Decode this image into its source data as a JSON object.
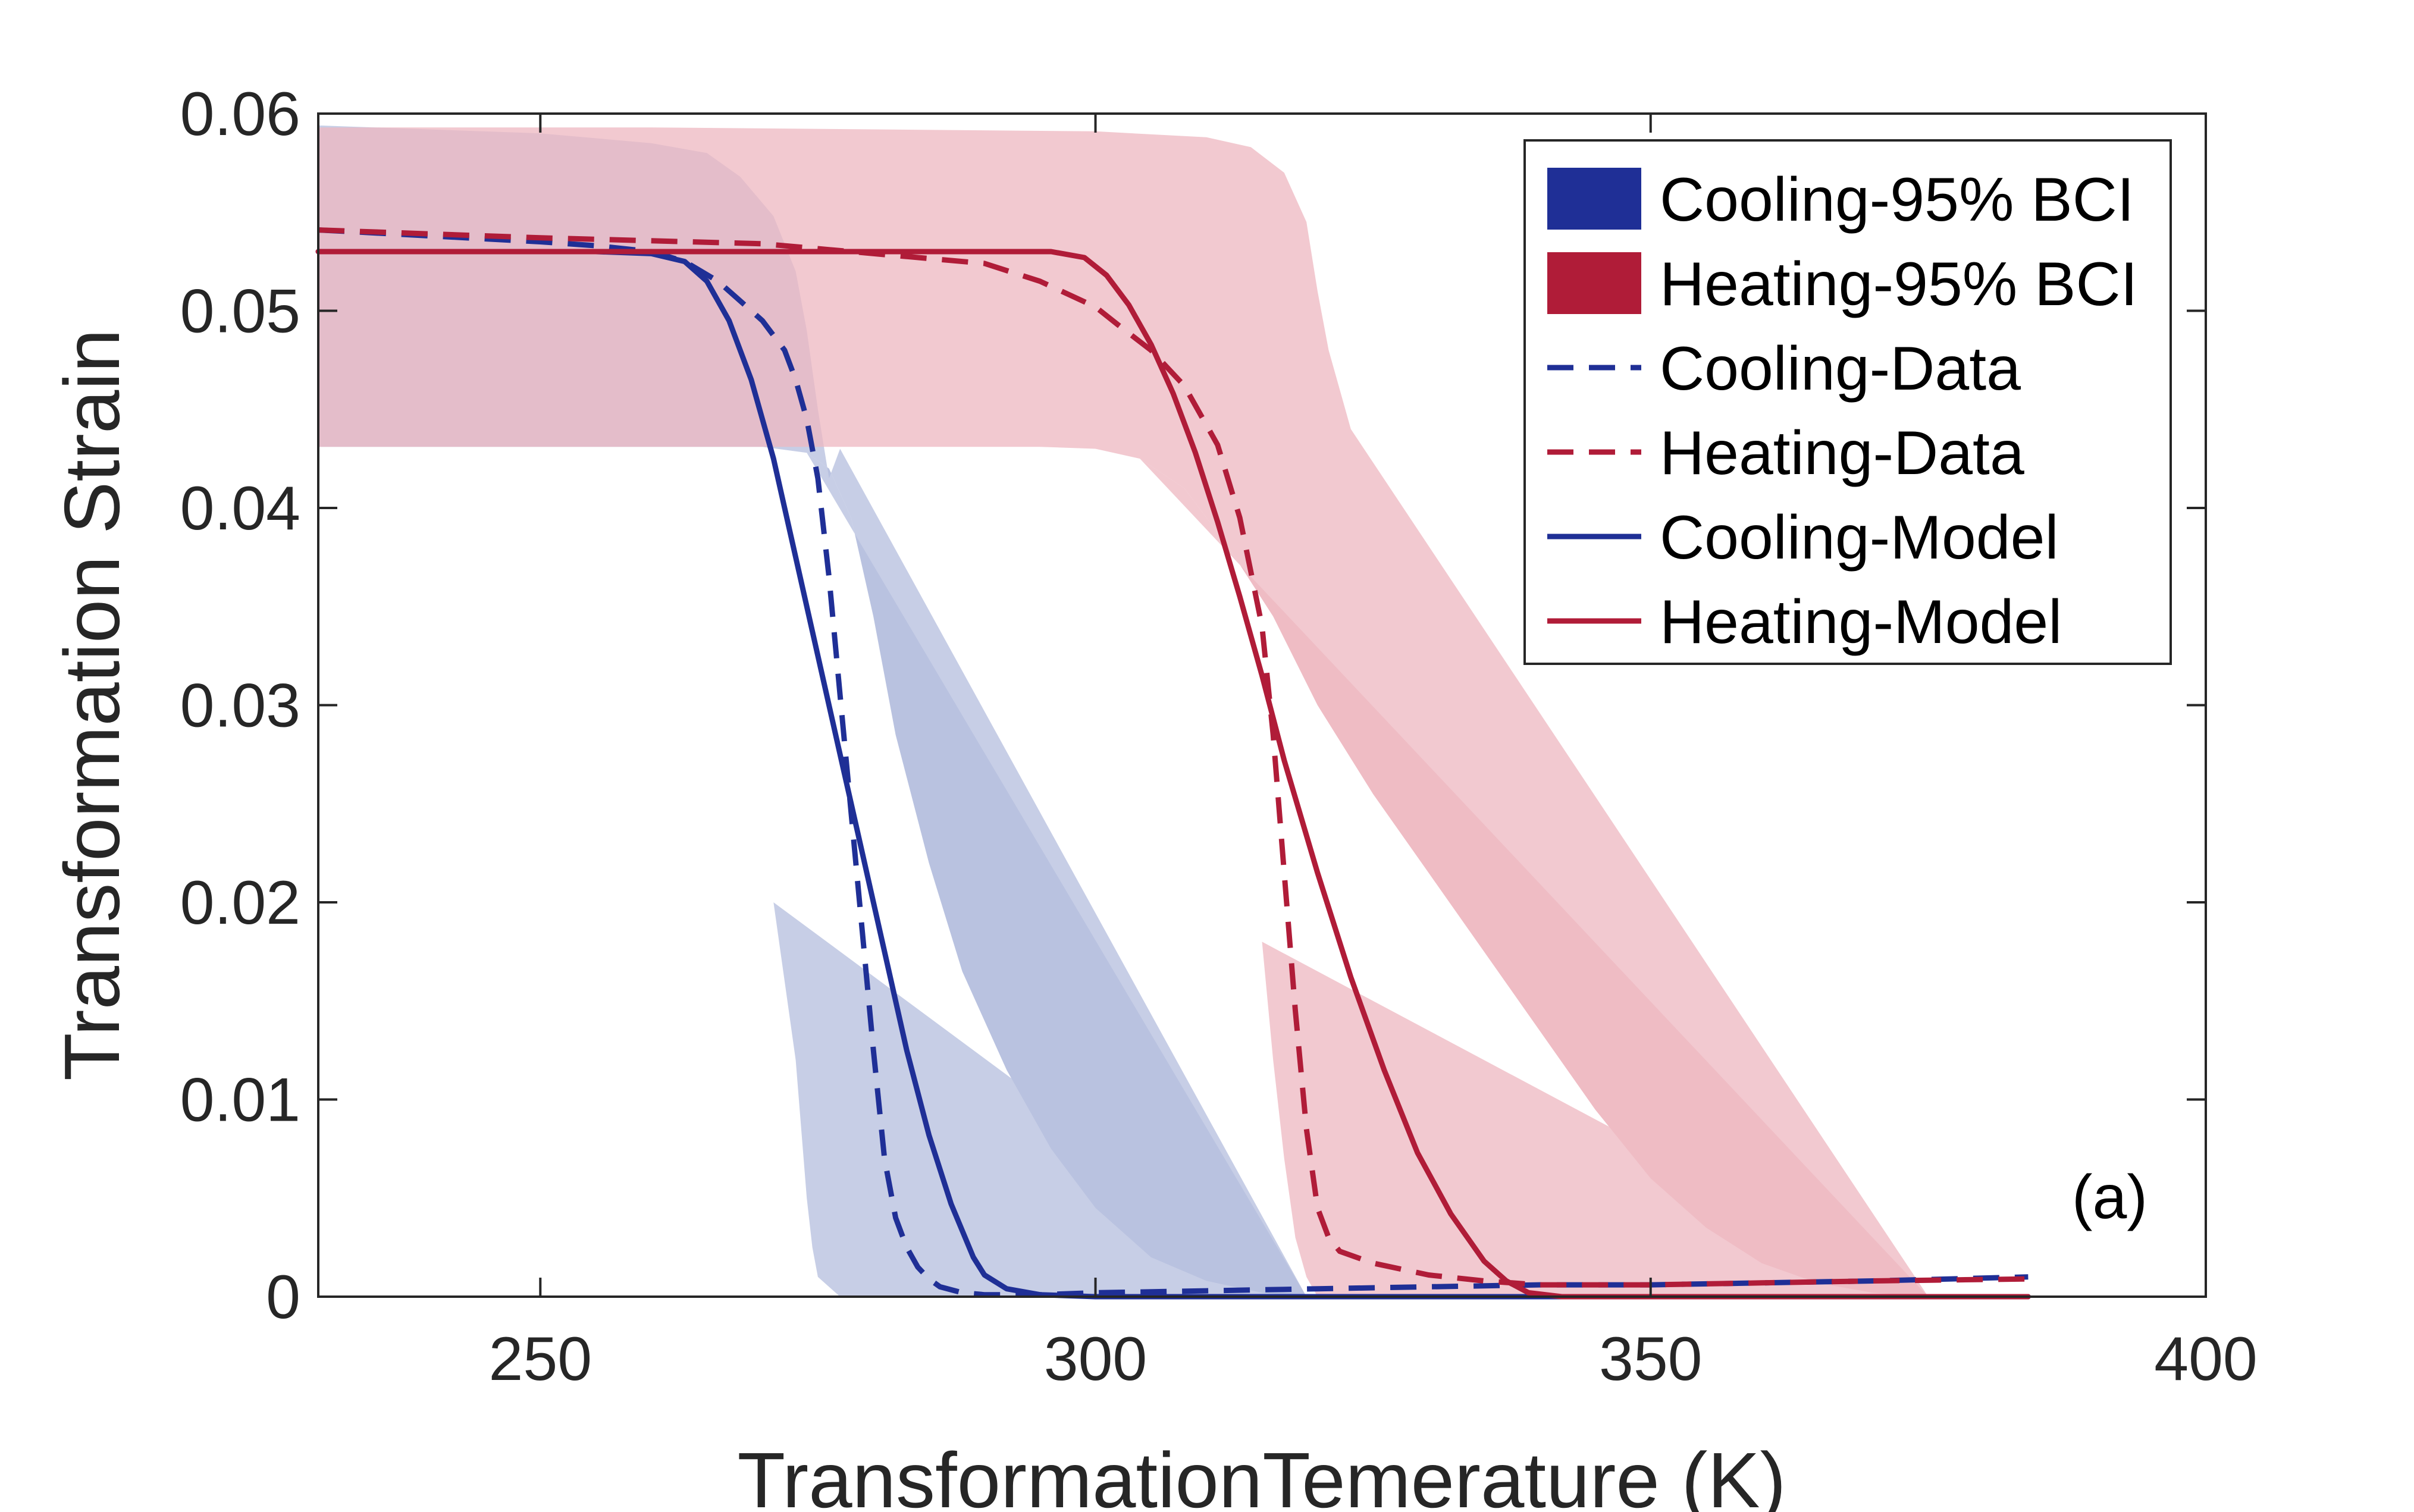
{
  "chart_data": {
    "type": "line",
    "title": "",
    "xlabel": "TransformationTemerature (K)",
    "ylabel": "Transformation Strain",
    "xlim": [
      230,
      400
    ],
    "ylim": [
      0,
      0.06
    ],
    "xticks": [
      250,
      300,
      350,
      400
    ],
    "yticks": [
      0,
      0.01,
      0.02,
      0.03,
      0.04,
      0.05,
      0.06
    ],
    "xtick_labels": [
      "250",
      "300",
      "350",
      "400"
    ],
    "ytick_labels": [
      "0",
      "0.01",
      "0.02",
      "0.03",
      "0.04",
      "0.05",
      "0.06"
    ],
    "grid": false,
    "legend_position": "top-right",
    "annotation": "(a)",
    "colors": {
      "cooling": "#1f2f96",
      "heating": "#b01c38",
      "cooling_band_fill": "#b4bedd",
      "heating_band_fill": "#edb7c0",
      "axis": "#262626"
    },
    "bands": [
      {
        "name": "Cooling-95% BCI",
        "color_key": "cooling",
        "fill_key": "cooling_band_fill",
        "upper_x": [
          230,
          240,
          250,
          260,
          265,
          268,
          271,
          273,
          274,
          275,
          276,
          277
        ],
        "upper_y": [
          0.0594,
          0.0592,
          0.059,
          0.0585,
          0.058,
          0.0568,
          0.0548,
          0.052,
          0.049,
          0.045,
          0.0415,
          0.043
        ],
        "lower_x": [
          230,
          250,
          270,
          274,
          276,
          278,
          280,
          282,
          285,
          288,
          292,
          296,
          300,
          305,
          310,
          315,
          319
        ],
        "lower_y": [
          0.0431,
          0.0431,
          0.0431,
          0.0428,
          0.042,
          0.0395,
          0.0345,
          0.0285,
          0.022,
          0.0165,
          0.0115,
          0.0075,
          0.0045,
          0.002,
          0.0008,
          0.0002,
          0.0
        ],
        "bottom_x": [
          277,
          275,
          274.5,
          274,
          273,
          271
        ],
        "bottom_y": [
          0.0,
          0.001,
          0.0025,
          0.005,
          0.012,
          0.02
        ]
      },
      {
        "name": "Heating-95% BCI",
        "color_key": "heating",
        "fill_key": "heating_band_fill",
        "upper_x": [
          230,
          260,
          280,
          300,
          310,
          314,
          317,
          319,
          320,
          321,
          322,
          323
        ],
        "upper_y": [
          0.0593,
          0.0593,
          0.0592,
          0.0591,
          0.0588,
          0.0583,
          0.057,
          0.0545,
          0.051,
          0.048,
          0.046,
          0.044
        ],
        "lower_x": [
          230,
          260,
          295,
          300,
          304,
          308,
          312,
          316,
          320,
          325,
          330,
          335,
          340,
          345,
          350,
          355,
          360,
          365,
          370,
          375
        ],
        "lower_y": [
          0.0431,
          0.0431,
          0.0431,
          0.043,
          0.0425,
          0.041,
          0.038,
          0.0345,
          0.03,
          0.0255,
          0.0215,
          0.0175,
          0.0135,
          0.0095,
          0.006,
          0.0035,
          0.0017,
          0.0007,
          0.0002,
          0.0
        ],
        "bottom_x": [
          320,
          319,
          318,
          317,
          316,
          315
        ],
        "bottom_y": [
          0.0,
          0.001,
          0.003,
          0.007,
          0.012,
          0.018
        ]
      }
    ],
    "series": [
      {
        "name": "Cooling-Data",
        "style": "dashed",
        "color_key": "cooling",
        "x": [
          230,
          240,
          250,
          255,
          260,
          263,
          266,
          268,
          270,
          272,
          273,
          274,
          275,
          276,
          277,
          278,
          279,
          280,
          281,
          282,
          283,
          284,
          285,
          286,
          288,
          290,
          295,
          300,
          310,
          320,
          330,
          340,
          350,
          360,
          370,
          384
        ],
        "y": [
          0.0541,
          0.0538,
          0.0535,
          0.0533,
          0.053,
          0.0525,
          0.0515,
          0.0505,
          0.0495,
          0.048,
          0.0465,
          0.0445,
          0.0415,
          0.0365,
          0.0305,
          0.0245,
          0.0185,
          0.0125,
          0.007,
          0.004,
          0.0025,
          0.0015,
          0.0009,
          0.0005,
          0.0002,
          0.0001,
          0.0001,
          0.0002,
          0.0003,
          0.0004,
          0.0005,
          0.0006,
          0.0006,
          0.0007,
          0.0008,
          0.001
        ]
      },
      {
        "name": "Heating-Data",
        "style": "dashed",
        "color_key": "heating",
        "x": [
          230,
          250,
          270,
          290,
          295,
          300,
          302,
          305,
          308,
          311,
          313,
          315,
          316,
          317,
          318,
          319,
          320,
          321,
          322,
          325,
          330,
          335,
          340,
          350,
          360,
          370,
          384
        ],
        "y": [
          0.0541,
          0.0537,
          0.0534,
          0.0524,
          0.0515,
          0.0502,
          0.0493,
          0.048,
          0.0462,
          0.0432,
          0.0395,
          0.034,
          0.0285,
          0.0215,
          0.0145,
          0.0085,
          0.0045,
          0.003,
          0.0023,
          0.0017,
          0.0011,
          0.0008,
          0.0006,
          0.0006,
          0.0007,
          0.0008,
          0.0009
        ]
      },
      {
        "name": "Cooling-Model",
        "style": "solid",
        "color_key": "cooling",
        "x": [
          230,
          255,
          260,
          263,
          265,
          267,
          269,
          271,
          273,
          275,
          277,
          279,
          281,
          283,
          285,
          287,
          289,
          290,
          292,
          295,
          300,
          340,
          384
        ],
        "y": [
          0.053,
          0.053,
          0.0529,
          0.0525,
          0.0515,
          0.0495,
          0.0465,
          0.0425,
          0.0375,
          0.0325,
          0.0275,
          0.0225,
          0.0175,
          0.0125,
          0.0082,
          0.0047,
          0.002,
          0.0011,
          0.0004,
          0.0001,
          0.0,
          0.0,
          0.0
        ]
      },
      {
        "name": "Heating-Model",
        "style": "solid",
        "color_key": "heating",
        "x": [
          230,
          280,
          296,
          299,
          301,
          303,
          305,
          307,
          309,
          311,
          313,
          315,
          317,
          320,
          323,
          326,
          329,
          332,
          335,
          337,
          339,
          342,
          345,
          384
        ],
        "y": [
          0.053,
          0.053,
          0.053,
          0.0527,
          0.0518,
          0.0503,
          0.0483,
          0.0458,
          0.0428,
          0.0393,
          0.0355,
          0.0315,
          0.0272,
          0.0215,
          0.0162,
          0.0115,
          0.0073,
          0.0042,
          0.0018,
          0.0008,
          0.0002,
          0.0,
          0.0,
          0.0
        ]
      }
    ],
    "legend": [
      {
        "label": "Cooling-95% BCI",
        "kind": "patch",
        "color_key": "cooling"
      },
      {
        "label": "Heating-95% BCI",
        "kind": "patch",
        "color_key": "heating"
      },
      {
        "label": "Cooling-Data",
        "kind": "dashed",
        "color_key": "cooling"
      },
      {
        "label": "Heating-Data",
        "kind": "dashed",
        "color_key": "heating"
      },
      {
        "label": "Cooling-Model",
        "kind": "solid",
        "color_key": "cooling"
      },
      {
        "label": "Heating-Model",
        "kind": "solid",
        "color_key": "heating"
      }
    ]
  }
}
